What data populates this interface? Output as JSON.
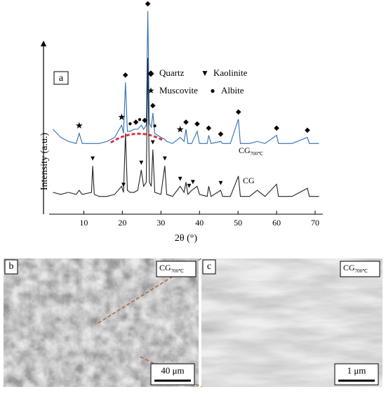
{
  "chart_data": {
    "type": "line",
    "panel_label": "a",
    "x_label": "2θ (°)",
    "y_label": "Intensity (a.u.)",
    "xlim": [
      1,
      72
    ],
    "ylim": [
      0,
      100
    ],
    "xticks": [
      10,
      20,
      30,
      40,
      50,
      60,
      70
    ],
    "x": [
      2,
      4,
      6,
      8,
      8.8,
      9.6,
      12,
      12.3,
      12.7,
      14,
      16,
      18,
      19.8,
      20.3,
      20.8,
      21.3,
      22,
      23,
      24,
      24.9,
      25.5,
      26.2,
      26.6,
      27.0,
      27.5,
      27.9,
      28.4,
      30,
      31,
      31.5,
      33,
      35,
      36,
      36.5,
      37,
      38,
      39.4,
      40,
      42,
      42.4,
      43,
      45.5,
      46,
      48,
      50.1,
      50.6,
      53,
      55,
      57,
      60,
      60.5,
      64,
      68,
      68.5,
      71
    ],
    "series": [
      {
        "name": "CG",
        "subscript": "700℃",
        "color": "#2f6fb3",
        "values": [
          40,
          36,
          34,
          33,
          38,
          33,
          33,
          33,
          33,
          33,
          34,
          36,
          42,
          38,
          63,
          39,
          39,
          40,
          40,
          42,
          40,
          42,
          98,
          43,
          41,
          48,
          38,
          36,
          35,
          34,
          33,
          36,
          34,
          40,
          33,
          33,
          39,
          33,
          33,
          37,
          33,
          34,
          33,
          33,
          45,
          33,
          33,
          34,
          33,
          37,
          33,
          33,
          36,
          33,
          33
        ]
      },
      {
        "name": "CG",
        "color": "#222222",
        "values": [
          9,
          8,
          9,
          8,
          10,
          8,
          9,
          22,
          8,
          7,
          7,
          8,
          12,
          9,
          38,
          10,
          9,
          9,
          10,
          20,
          12,
          14,
          75,
          14,
          12,
          30,
          9,
          8,
          22,
          8,
          7,
          12,
          9,
          14,
          8,
          10,
          12,
          8,
          7,
          12,
          7,
          10,
          7,
          7,
          17,
          7,
          7,
          10,
          7,
          13,
          7,
          7,
          11,
          7,
          7
        ]
      }
    ],
    "legend": [
      {
        "symbol": "◆",
        "label": "Quartz"
      },
      {
        "symbol": "▼",
        "label": "Kaolinite"
      },
      {
        "symbol": "★",
        "label": "Muscovite"
      },
      {
        "symbol": "●",
        "label": "Albite"
      }
    ],
    "peak_marks": [
      {
        "symbol": "◆",
        "x": 26.6,
        "series": 0
      },
      {
        "symbol": "◆",
        "x": 20.8,
        "series": 0
      },
      {
        "symbol": "◆",
        "x": 27.9,
        "series": 0
      },
      {
        "symbol": "◆",
        "x": 23.5,
        "series": 0
      },
      {
        "symbol": "◆",
        "x": 25.8,
        "series": 0
      },
      {
        "symbol": "◆",
        "x": 36.5,
        "series": 0
      },
      {
        "symbol": "◆",
        "x": 39.4,
        "series": 0
      },
      {
        "symbol": "◆",
        "x": 42.4,
        "series": 0
      },
      {
        "symbol": "◆",
        "x": 45.5,
        "series": 0
      },
      {
        "symbol": "◆",
        "x": 50.1,
        "series": 0
      },
      {
        "symbol": "◆",
        "x": 60,
        "series": 0
      },
      {
        "symbol": "◆",
        "x": 68,
        "series": 0
      },
      {
        "symbol": "★",
        "x": 8.8,
        "series": 0
      },
      {
        "symbol": "★",
        "x": 19.8,
        "series": 0
      },
      {
        "symbol": "★",
        "x": 35,
        "series": 0
      },
      {
        "symbol": "●",
        "x": 22,
        "series": 0
      },
      {
        "symbol": "●",
        "x": 24.5,
        "series": 0
      },
      {
        "symbol": "●",
        "x": 28.4,
        "series": 0
      },
      {
        "symbol": "▼",
        "x": 12.3,
        "series": 1
      },
      {
        "symbol": "▼",
        "x": 20.3,
        "series": 1
      },
      {
        "symbol": "▼",
        "x": 24.9,
        "series": 1
      },
      {
        "symbol": "▼",
        "x": 27.9,
        "series": 1
      },
      {
        "symbol": "▼",
        "x": 31,
        "series": 1
      },
      {
        "symbol": "▼",
        "x": 35,
        "series": 1
      },
      {
        "symbol": "▼",
        "x": 37.3,
        "series": 1
      },
      {
        "symbol": "▼",
        "x": 38.3,
        "series": 1
      },
      {
        "symbol": "▼",
        "x": 45.5,
        "series": 1
      }
    ]
  },
  "images": [
    {
      "label": "b",
      "sample": "CG",
      "sample_subscript": "700℃",
      "scale": "40 μm"
    },
    {
      "label": "c",
      "sample": "CG",
      "sample_subscript": "700℃",
      "scale": "1 μm"
    }
  ]
}
